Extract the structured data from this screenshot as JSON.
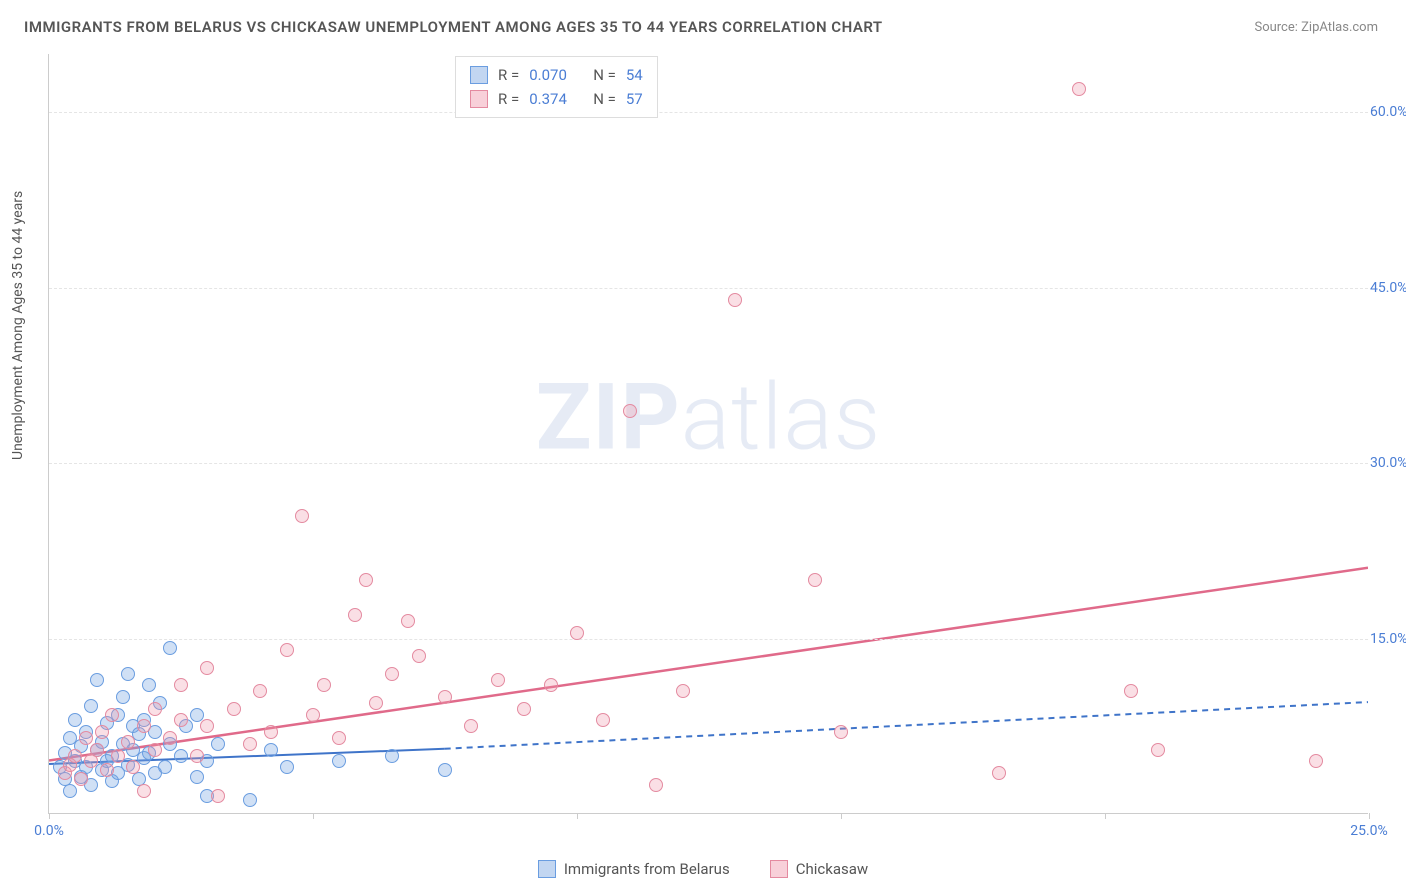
{
  "title": "IMMIGRANTS FROM BELARUS VS CHICKASAW UNEMPLOYMENT AMONG AGES 35 TO 44 YEARS CORRELATION CHART",
  "source": "Source: ZipAtlas.com",
  "ylabel": "Unemployment Among Ages 35 to 44 years",
  "watermark_bold": "ZIP",
  "watermark_light": "atlas",
  "chart": {
    "type": "scatter",
    "background_color": "#ffffff",
    "grid_color": "#e5e5e5",
    "axis_color": "#cccccc",
    "tick_label_color": "#4a7dd4",
    "x_range": [
      0.0,
      25.0
    ],
    "y_range": [
      0.0,
      65.0
    ],
    "x_ticks": [
      0.0,
      5.0,
      10.0,
      15.0,
      20.0,
      25.0
    ],
    "x_tick_labels": [
      "0.0%",
      "",
      "",
      "",
      "",
      "25.0%"
    ],
    "y_ticks": [
      15.0,
      30.0,
      45.0,
      60.0
    ],
    "y_tick_labels": [
      "15.0%",
      "30.0%",
      "45.0%",
      "60.0%"
    ],
    "tick_fontsize": 14,
    "marker_radius": 7,
    "series": [
      {
        "name": "Immigrants from Belarus",
        "color_fill": "rgba(120,165,225,0.35)",
        "color_stroke": "#6a9de0",
        "r": "0.070",
        "n": "54",
        "trend": {
          "x1": 0.0,
          "y1": 4.2,
          "x2": 7.5,
          "y2": 5.5,
          "x2_ext": 25.0,
          "y2_ext": 9.5,
          "stroke": "#3f74c9",
          "width": 2,
          "dash_ext": "6,5"
        },
        "points": [
          [
            0.2,
            4.0
          ],
          [
            0.3,
            5.2
          ],
          [
            0.3,
            3.0
          ],
          [
            0.4,
            6.5
          ],
          [
            0.4,
            2.0
          ],
          [
            0.5,
            4.5
          ],
          [
            0.5,
            8.0
          ],
          [
            0.6,
            3.2
          ],
          [
            0.6,
            5.8
          ],
          [
            0.7,
            7.0
          ],
          [
            0.7,
            4.0
          ],
          [
            0.8,
            2.5
          ],
          [
            0.8,
            9.2
          ],
          [
            0.9,
            5.5
          ],
          [
            0.9,
            11.5
          ],
          [
            1.0,
            3.8
          ],
          [
            1.0,
            6.2
          ],
          [
            1.1,
            4.5
          ],
          [
            1.1,
            7.8
          ],
          [
            1.2,
            2.8
          ],
          [
            1.2,
            5.0
          ],
          [
            1.3,
            8.5
          ],
          [
            1.3,
            3.5
          ],
          [
            1.4,
            6.0
          ],
          [
            1.4,
            10.0
          ],
          [
            1.5,
            4.2
          ],
          [
            1.5,
            12.0
          ],
          [
            1.6,
            5.5
          ],
          [
            1.6,
            7.5
          ],
          [
            1.7,
            3.0
          ],
          [
            1.7,
            6.8
          ],
          [
            1.8,
            4.8
          ],
          [
            1.8,
            8.0
          ],
          [
            1.9,
            11.0
          ],
          [
            1.9,
            5.2
          ],
          [
            2.0,
            3.5
          ],
          [
            2.0,
            7.0
          ],
          [
            2.1,
            9.5
          ],
          [
            2.2,
            4.0
          ],
          [
            2.3,
            6.0
          ],
          [
            2.3,
            14.2
          ],
          [
            2.5,
            5.0
          ],
          [
            2.6,
            7.5
          ],
          [
            2.8,
            3.2
          ],
          [
            2.8,
            8.5
          ],
          [
            3.0,
            4.5
          ],
          [
            3.0,
            1.5
          ],
          [
            3.2,
            6.0
          ],
          [
            3.8,
            1.2
          ],
          [
            4.2,
            5.5
          ],
          [
            4.5,
            4.0
          ],
          [
            5.5,
            4.5
          ],
          [
            6.5,
            5.0
          ],
          [
            7.5,
            3.8
          ]
        ]
      },
      {
        "name": "Chickasaw",
        "color_fill": "rgba(240,150,170,0.30)",
        "color_stroke": "#e48aa0",
        "r": "0.374",
        "n": "57",
        "trend": {
          "x1": 0.0,
          "y1": 4.5,
          "x2": 25.0,
          "y2": 21.0,
          "stroke": "#e06a8a",
          "width": 2.5
        },
        "points": [
          [
            0.3,
            3.5
          ],
          [
            0.4,
            4.2
          ],
          [
            0.5,
            5.0
          ],
          [
            0.6,
            3.0
          ],
          [
            0.7,
            6.5
          ],
          [
            0.8,
            4.5
          ],
          [
            0.9,
            5.5
          ],
          [
            1.0,
            7.0
          ],
          [
            1.1,
            3.8
          ],
          [
            1.2,
            8.5
          ],
          [
            1.3,
            5.0
          ],
          [
            1.5,
            6.2
          ],
          [
            1.6,
            4.0
          ],
          [
            1.8,
            7.5
          ],
          [
            1.8,
            2.0
          ],
          [
            2.0,
            9.0
          ],
          [
            2.0,
            5.5
          ],
          [
            2.3,
            6.5
          ],
          [
            2.5,
            8.0
          ],
          [
            2.5,
            11.0
          ],
          [
            2.8,
            5.0
          ],
          [
            3.0,
            7.5
          ],
          [
            3.0,
            12.5
          ],
          [
            3.2,
            1.5
          ],
          [
            3.5,
            9.0
          ],
          [
            3.8,
            6.0
          ],
          [
            4.0,
            10.5
          ],
          [
            4.2,
            7.0
          ],
          [
            4.5,
            14.0
          ],
          [
            4.8,
            25.5
          ],
          [
            5.0,
            8.5
          ],
          [
            5.2,
            11.0
          ],
          [
            5.5,
            6.5
          ],
          [
            5.8,
            17.0
          ],
          [
            6.0,
            20.0
          ],
          [
            6.2,
            9.5
          ],
          [
            6.5,
            12.0
          ],
          [
            6.8,
            16.5
          ],
          [
            7.0,
            13.5
          ],
          [
            7.5,
            10.0
          ],
          [
            8.0,
            7.5
          ],
          [
            8.5,
            11.5
          ],
          [
            9.0,
            9.0
          ],
          [
            9.5,
            11.0
          ],
          [
            10.0,
            15.5
          ],
          [
            10.5,
            8.0
          ],
          [
            11.0,
            34.5
          ],
          [
            11.5,
            2.5
          ],
          [
            12.0,
            10.5
          ],
          [
            13.0,
            44.0
          ],
          [
            14.5,
            20.0
          ],
          [
            15.0,
            7.0
          ],
          [
            18.0,
            3.5
          ],
          [
            19.5,
            62.0
          ],
          [
            20.5,
            10.5
          ],
          [
            21.0,
            5.5
          ],
          [
            24.0,
            4.5
          ]
        ]
      }
    ]
  },
  "legend_top": {
    "r_label": "R =",
    "n_label": "N ="
  },
  "legend_bottom": [
    {
      "swatch": "blue",
      "label": "Immigrants from Belarus"
    },
    {
      "swatch": "pink",
      "label": "Chickasaw"
    }
  ]
}
